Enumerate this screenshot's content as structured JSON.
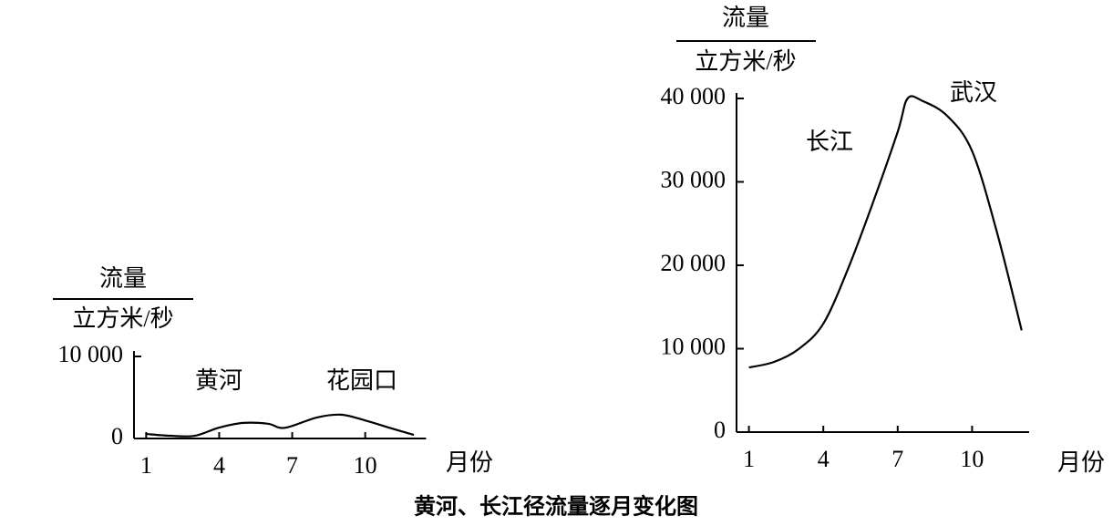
{
  "caption": "黄河、长江径流量逐月变化图",
  "chart_data": [
    {
      "type": "line",
      "ylabel": {
        "numerator": "流量",
        "denominator": "立方米/秒"
      },
      "xlabel": "月份",
      "annotations": [
        "黄河",
        "花园口"
      ],
      "color": "#000000",
      "grid": false,
      "x": [
        1,
        2,
        3,
        4,
        5,
        6,
        6.7,
        8,
        9,
        10,
        11,
        12
      ],
      "values": [
        550,
        330,
        330,
        1330,
        1900,
        1800,
        1300,
        2550,
        2900,
        2200,
        1300,
        440
      ],
      "xlim": [
        0.5,
        12.5
      ],
      "xticks": [
        1,
        4,
        7,
        10
      ],
      "ylim": [
        0,
        10000
      ],
      "yticks": [
        0,
        {
          "value": 10000,
          "label": "10 000"
        }
      ]
    },
    {
      "type": "line",
      "ylabel": {
        "numerator": "流量",
        "denominator": "立方米/秒"
      },
      "xlabel": "月份",
      "annotations": [
        "长江",
        "武汉"
      ],
      "color": "#000000",
      "grid": false,
      "x": [
        1,
        2,
        3,
        4,
        5,
        6,
        7,
        7.4,
        8,
        9,
        10,
        11,
        12
      ],
      "values": [
        7750,
        8400,
        9950,
        13000,
        19600,
        27500,
        36000,
        40000,
        39700,
        37900,
        33700,
        24000,
        12200
      ],
      "xlim": [
        0.5,
        12.3
      ],
      "xticks": [
        1,
        4,
        7,
        10
      ],
      "ylim": [
        0,
        40000
      ],
      "yticks": [
        0,
        {
          "value": 10000,
          "label": "10 000"
        },
        {
          "value": 20000,
          "label": "20 000"
        },
        {
          "value": 30000,
          "label": "30 000"
        },
        {
          "value": 40000,
          "label": "40 000"
        }
      ]
    }
  ]
}
